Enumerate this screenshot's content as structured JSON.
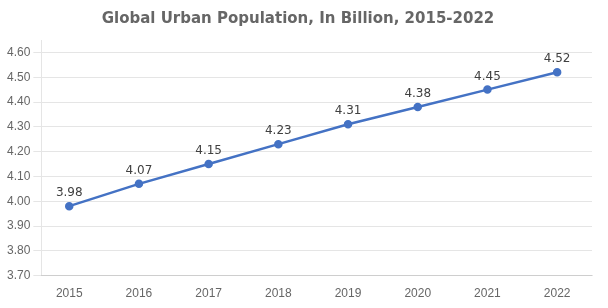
{
  "chart_data": {
    "type": "line",
    "title": "Global Urban Population, In Billion, 2015-2022",
    "x": [
      2015,
      2016,
      2017,
      2018,
      2019,
      2020,
      2021,
      2022
    ],
    "values": [
      3.98,
      4.07,
      4.15,
      4.23,
      4.31,
      4.38,
      4.45,
      4.52
    ],
    "color": "#4472C4",
    "xlim": [
      2014.6,
      2022.5
    ],
    "xticks": [
      2015,
      2016,
      2017,
      2018,
      2019,
      2020,
      2021,
      2022
    ],
    "ylim": [
      3.7,
      4.65
    ],
    "yticks": [
      {
        "value": 3.7,
        "label": "3.70"
      },
      {
        "value": 3.8,
        "label": "3.80"
      },
      {
        "value": 3.9,
        "label": "3.90"
      },
      {
        "value": 4.0,
        "label": "4.00"
      },
      {
        "value": 4.1,
        "label": "4.10"
      },
      {
        "value": 4.2,
        "label": "4.20"
      },
      {
        "value": 4.3,
        "label": "4.30"
      },
      {
        "value": 4.4,
        "label": "4.40"
      },
      {
        "value": 4.5,
        "label": "4.50"
      },
      {
        "value": 4.6,
        "label": "4.60"
      }
    ],
    "grid": true,
    "data_labels": true
  }
}
